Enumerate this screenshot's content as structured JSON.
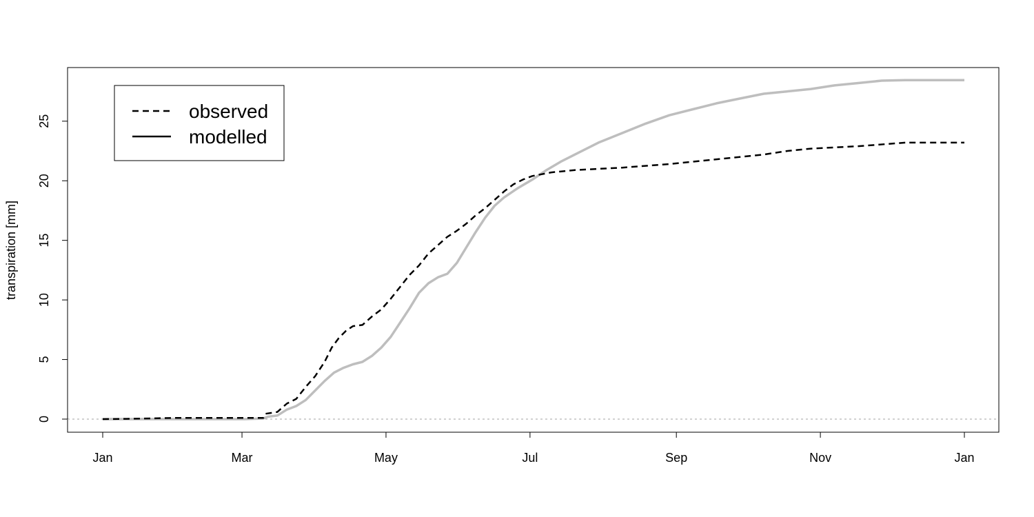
{
  "chart_data": {
    "type": "line",
    "ylabel": "transpiration [mm]",
    "xlabel": "",
    "x_ticks": [
      "Jan",
      "Mar",
      "May",
      "Jul",
      "Sep",
      "Nov",
      "Jan"
    ],
    "x_tick_days": [
      0,
      59,
      120,
      181,
      243,
      304,
      365
    ],
    "ylim": [
      -1.1,
      29.5
    ],
    "y_ticks": [
      0,
      5,
      10,
      15,
      20,
      25
    ],
    "reference_line": 0,
    "legend": {
      "position": "top-left",
      "entries": [
        {
          "label": "observed",
          "style": "dashed",
          "color": "#000000"
        },
        {
          "label": "modelled",
          "style": "solid",
          "color": "#000000"
        }
      ]
    },
    "series": [
      {
        "style": "dashed",
        "color": "#000000",
        "points": [
          [
            0,
            0
          ],
          [
            10,
            0.02
          ],
          [
            30,
            0.1
          ],
          [
            50,
            0.1
          ],
          [
            68,
            0.1
          ],
          [
            69,
            0.45
          ],
          [
            74,
            0.6
          ],
          [
            78,
            1.3
          ],
          [
            82,
            1.7
          ],
          [
            86,
            2.7
          ],
          [
            90,
            3.6
          ],
          [
            94,
            4.8
          ],
          [
            97,
            6.0
          ],
          [
            100,
            6.8
          ],
          [
            103,
            7.4
          ],
          [
            106,
            7.8
          ],
          [
            110,
            7.9
          ],
          [
            114,
            8.6
          ],
          [
            118,
            9.2
          ],
          [
            122,
            10.1
          ],
          [
            126,
            11.1
          ],
          [
            130,
            12.1
          ],
          [
            134,
            12.9
          ],
          [
            138,
            13.9
          ],
          [
            142,
            14.6
          ],
          [
            146,
            15.3
          ],
          [
            150,
            15.8
          ],
          [
            154,
            16.4
          ],
          [
            158,
            17.1
          ],
          [
            162,
            17.7
          ],
          [
            166,
            18.4
          ],
          [
            170,
            19.1
          ],
          [
            174,
            19.7
          ],
          [
            178,
            20.1
          ],
          [
            182,
            20.4
          ],
          [
            190,
            20.7
          ],
          [
            200,
            20.9
          ],
          [
            220,
            21.1
          ],
          [
            240,
            21.4
          ],
          [
            260,
            21.8
          ],
          [
            280,
            22.2
          ],
          [
            290,
            22.5
          ],
          [
            300,
            22.7
          ],
          [
            320,
            22.9
          ],
          [
            340,
            23.2
          ],
          [
            365,
            23.2
          ]
        ]
      },
      {
        "style": "solid",
        "color": "#bebebe",
        "points": [
          [
            0,
            0
          ],
          [
            30,
            0
          ],
          [
            60,
            0
          ],
          [
            68,
            0.05
          ],
          [
            70,
            0.2
          ],
          [
            74,
            0.3
          ],
          [
            78,
            0.8
          ],
          [
            82,
            1.1
          ],
          [
            86,
            1.6
          ],
          [
            90,
            2.4
          ],
          [
            94,
            3.2
          ],
          [
            98,
            3.9
          ],
          [
            102,
            4.3
          ],
          [
            106,
            4.6
          ],
          [
            110,
            4.8
          ],
          [
            114,
            5.3
          ],
          [
            118,
            6.0
          ],
          [
            122,
            6.9
          ],
          [
            126,
            8.1
          ],
          [
            130,
            9.3
          ],
          [
            134,
            10.6
          ],
          [
            138,
            11.4
          ],
          [
            142,
            11.9
          ],
          [
            146,
            12.2
          ],
          [
            150,
            13.1
          ],
          [
            154,
            14.4
          ],
          [
            158,
            15.7
          ],
          [
            162,
            16.9
          ],
          [
            166,
            17.9
          ],
          [
            170,
            18.6
          ],
          [
            176,
            19.4
          ],
          [
            182,
            20.1
          ],
          [
            188,
            20.9
          ],
          [
            194,
            21.6
          ],
          [
            200,
            22.2
          ],
          [
            210,
            23.2
          ],
          [
            220,
            24.0
          ],
          [
            230,
            24.8
          ],
          [
            240,
            25.5
          ],
          [
            250,
            26.0
          ],
          [
            260,
            26.5
          ],
          [
            270,
            26.9
          ],
          [
            280,
            27.3
          ],
          [
            290,
            27.5
          ],
          [
            300,
            27.7
          ],
          [
            310,
            28.0
          ],
          [
            320,
            28.2
          ],
          [
            330,
            28.4
          ],
          [
            340,
            28.45
          ],
          [
            365,
            28.45
          ]
        ]
      }
    ]
  }
}
